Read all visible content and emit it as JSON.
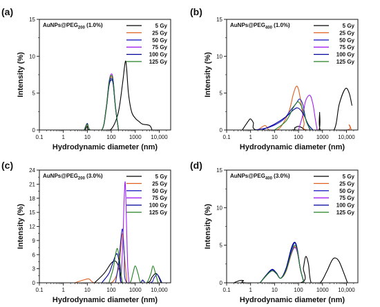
{
  "chart_data": [
    {
      "panel": "(a)",
      "type": "line",
      "title_main": "AuNPs@PEG",
      "title_sub": "200",
      "title_tail": " (1.0%)",
      "xlabel": "Hydrodynamic diameter (nm)",
      "ylabel": "Intensity (%)",
      "xscale": "log",
      "xlim": [
        0.1,
        30000
      ],
      "ylim": [
        0,
        15
      ],
      "xticks": [
        0.1,
        1,
        10,
        100,
        1000,
        10000
      ],
      "xtick_labels": [
        "0.1",
        "1",
        "10",
        "100",
        "1000",
        "10,000"
      ],
      "yticks": [
        0,
        5,
        10,
        15
      ],
      "ytick_labels": [
        "0",
        "5",
        "10",
        "15"
      ],
      "legend_position": "top-right",
      "series": [
        {
          "name": "5 Gy",
          "color": "#000000",
          "x": [
            8,
            10,
            12,
            60,
            110,
            200,
            300,
            380,
            430,
            520,
            700,
            1000,
            1500,
            2000,
            4000,
            5000
          ],
          "y": [
            0,
            0.5,
            0,
            0,
            0.3,
            2.5,
            6.5,
            9.2,
            8.6,
            5.0,
            2.5,
            1.6,
            1.1,
            0.8,
            0.6,
            0
          ]
        },
        {
          "name": "25 Gy",
          "color": "#e06020",
          "x": [
            7.5,
            10,
            13,
            40,
            60,
            80,
            100,
            120,
            150,
            200
          ],
          "y": [
            0,
            0.7,
            0,
            0,
            2.5,
            6.0,
            7.2,
            6.5,
            3.0,
            0
          ]
        },
        {
          "name": "50 Gy",
          "color": "#2020c0",
          "x": [
            7.5,
            10,
            13,
            40,
            60,
            80,
            100,
            120,
            150,
            200
          ],
          "y": [
            0,
            0.8,
            0,
            0,
            2.6,
            6.2,
            7.0,
            6.3,
            3.0,
            0
          ]
        },
        {
          "name": "75 Gy",
          "color": "#a020f0",
          "x": [
            7.5,
            10,
            13,
            40,
            60,
            80,
            100,
            120,
            150,
            200
          ],
          "y": [
            0,
            0.8,
            0,
            0,
            2.8,
            6.5,
            7.6,
            6.8,
            3.2,
            0
          ]
        },
        {
          "name": "100 Gy",
          "color": "#00009a",
          "x": [
            7.5,
            10,
            13,
            40,
            60,
            80,
            100,
            120,
            150,
            200
          ],
          "y": [
            0,
            0.9,
            0,
            0,
            2.7,
            6.0,
            6.8,
            6.2,
            3.0,
            0
          ]
        },
        {
          "name": "125 Gy",
          "color": "#208020",
          "x": [
            7.5,
            10,
            13,
            40,
            60,
            80,
            100,
            120,
            150,
            200
          ],
          "y": [
            0,
            0.8,
            0,
            0,
            2.7,
            6.4,
            7.4,
            6.6,
            3.1,
            0
          ]
        }
      ]
    },
    {
      "panel": "(b)",
      "type": "line",
      "title_main": "AuNPs@PEG",
      "title_sub": "400",
      "title_tail": " (1.0%)",
      "xlabel": "Hydrodynamic diameter (nm)",
      "ylabel": "Intensity (%)",
      "xscale": "log",
      "xlim": [
        0.1,
        30000
      ],
      "ylim": [
        0,
        15
      ],
      "xticks": [
        0.1,
        1,
        10,
        100,
        1000,
        10000
      ],
      "xtick_labels": [
        "0.1",
        "1",
        "10",
        "100",
        "1000",
        "10,000"
      ],
      "yticks": [
        0,
        5,
        10,
        15
      ],
      "ytick_labels": [
        "0",
        "5",
        "10",
        "15"
      ],
      "legend_position": "top-right",
      "series": [
        {
          "name": "5 Gy",
          "color": "#000000",
          "x": [
            0.45,
            0.8,
            1.0,
            1.3,
            1.8,
            50,
            70,
            100,
            140,
            200,
            700,
            760,
            820,
            3000,
            5000,
            9000,
            13000,
            17000
          ],
          "y": [
            0,
            1.2,
            1.5,
            1.0,
            0,
            0,
            0.3,
            0.5,
            0.3,
            0,
            0,
            2.4,
            0,
            0,
            3.5,
            5.6,
            5.0,
            3.3
          ]
        },
        {
          "name": "25 Gy",
          "color": "#e06020",
          "x": [
            2,
            4,
            6,
            12,
            20,
            40,
            60,
            80,
            100,
            130,
            170,
            230,
            10000,
            13000,
            16000
          ],
          "y": [
            0,
            0.6,
            0,
            0,
            0.6,
            2.5,
            4.8,
            5.9,
            5.5,
            3.5,
            1.0,
            0,
            0,
            0.7,
            0
          ]
        },
        {
          "name": "50 Gy",
          "color": "#2020c0",
          "x": [
            1.5,
            5,
            12,
            25,
            50,
            80,
            110,
            150,
            200,
            300
          ],
          "y": [
            0,
            0.3,
            0.8,
            1.5,
            2.8,
            3.6,
            4.2,
            3.5,
            1.5,
            0
          ]
        },
        {
          "name": "75 Gy",
          "color": "#a020f0",
          "x": [
            100,
            150,
            200,
            300,
            400,
            500,
            600
          ],
          "y": [
            0,
            2.0,
            4.0,
            4.7,
            3.5,
            1.5,
            0
          ]
        },
        {
          "name": "100 Gy",
          "color": "#00009a",
          "x": [
            3,
            10,
            30,
            60,
            90,
            130,
            180,
            260,
            400
          ],
          "y": [
            0,
            0.8,
            1.8,
            2.7,
            3.0,
            2.6,
            1.8,
            0.7,
            0
          ]
        },
        {
          "name": "125 Gy",
          "color": "#208020",
          "x": [
            10,
            30,
            60,
            90,
            120,
            160,
            220,
            320
          ],
          "y": [
            0,
            1.2,
            3.0,
            3.8,
            3.5,
            2.5,
            1.0,
            0
          ]
        }
      ]
    },
    {
      "panel": "(c)",
      "type": "line",
      "title_main": "AuNPs@PEG",
      "title_sub": "200",
      "title_tail": " (3.0%)",
      "xlabel": "Hydrodynamic diameter (nm)",
      "ylabel": "Intensity (%)",
      "xscale": "log",
      "xlim": [
        0.1,
        30000
      ],
      "ylim": [
        0,
        24
      ],
      "xticks": [
        0.1,
        1,
        10,
        100,
        1000,
        10000
      ],
      "xtick_labels": [
        "0.1",
        "1",
        "10",
        "100",
        "1000",
        "10,000"
      ],
      "yticks": [
        0,
        3,
        6,
        9,
        12,
        15,
        18,
        21,
        24
      ],
      "ytick_labels": [
        "0",
        "3",
        "6",
        "9",
        "12",
        "15",
        "18",
        "21",
        "24"
      ],
      "legend_position": "top-right",
      "series": [
        {
          "name": "5 Gy",
          "color": "#000000",
          "x": [
            20,
            50,
            100,
            150,
            200,
            250,
            300,
            3000,
            5000,
            7000,
            9000,
            12000
          ],
          "y": [
            0,
            2.0,
            4.2,
            4.6,
            3.5,
            1.5,
            0,
            0,
            1.2,
            2.0,
            1.5,
            0
          ]
        },
        {
          "name": "25 Gy",
          "color": "#e06020",
          "x": [
            3,
            8,
            12,
            20,
            100,
            200,
            250,
            300,
            350,
            450
          ],
          "y": [
            0,
            0.7,
            0.8,
            0,
            0,
            3.0,
            7.5,
            10.5,
            6.0,
            0
          ]
        },
        {
          "name": "50 Gy",
          "color": "#2020c0",
          "x": [
            150,
            200,
            260,
            300,
            350,
            450,
            4000,
            6000,
            8000,
            10000,
            13000
          ],
          "y": [
            0,
            4.0,
            10.0,
            11.2,
            6.0,
            0,
            0,
            1.0,
            1.8,
            1.2,
            0
          ]
        },
        {
          "name": "75 Gy",
          "color": "#a020f0",
          "x": [
            250,
            300,
            340,
            380,
            420,
            480,
            550
          ],
          "y": [
            0,
            8.0,
            17.0,
            21.5,
            15.0,
            4.0,
            0
          ]
        },
        {
          "name": "100 Gy",
          "color": "#00009a",
          "x": [
            40,
            80,
            120,
            150,
            180,
            220,
            280,
            1500,
            2000,
            2500
          ],
          "y": [
            0,
            2.0,
            4.5,
            5.8,
            6.1,
            4.0,
            0,
            0,
            0.6,
            0
          ]
        },
        {
          "name": "125 Gy",
          "color": "#208020",
          "x": [
            80,
            120,
            150,
            180,
            220,
            300,
            600,
            800,
            1000,
            1300,
            1700,
            3000,
            4500,
            5500,
            7000,
            9000
          ],
          "y": [
            0,
            3.0,
            6.0,
            7.3,
            5.0,
            0,
            0,
            2.0,
            3.6,
            2.0,
            0,
            0,
            2.0,
            3.6,
            2.0,
            0
          ]
        }
      ]
    },
    {
      "panel": "(d)",
      "type": "line",
      "title_main": "AuNPs@PEG",
      "title_sub": "400",
      "title_tail": " (3.0%)",
      "xlabel": "Hydrodynamic diameter (nm)",
      "ylabel": "Intensity (%)",
      "xscale": "log",
      "xlim": [
        0.1,
        30000
      ],
      "ylim": [
        0,
        15
      ],
      "xticks": [
        0.1,
        1,
        10,
        100,
        1000,
        10000
      ],
      "xtick_labels": [
        "0.1",
        "1",
        "10",
        "100",
        "1000",
        "10,000"
      ],
      "yticks": [
        0,
        5,
        10,
        15
      ],
      "ytick_labels": [
        "0",
        "5",
        "10",
        "15"
      ],
      "legend_position": "top-right",
      "series": [
        {
          "name": "5 Gy",
          "color": "#000000",
          "x": [
            0.2,
            0.35,
            0.5,
            0.7,
            120,
            160,
            200,
            260,
            340,
            800,
            1500,
            2500,
            3500,
            5000,
            8000,
            11000
          ],
          "y": [
            0,
            0.3,
            0.3,
            0,
            0,
            2.0,
            3.5,
            2.5,
            0,
            0,
            1.5,
            3.0,
            3.3,
            2.8,
            1.2,
            0
          ]
        },
        {
          "name": "25 Gy",
          "color": "#e06020",
          "x": [
            2.5,
            5,
            8,
            12,
            18,
            30,
            50,
            70,
            90,
            120,
            170
          ],
          "y": [
            0,
            1.2,
            1.6,
            1.2,
            0.6,
            1.5,
            3.8,
            4.8,
            4.0,
            1.8,
            0
          ]
        },
        {
          "name": "50 Gy",
          "color": "#2020c0",
          "x": [
            2.5,
            5,
            8,
            12,
            18,
            30,
            50,
            70,
            90,
            120,
            170
          ],
          "y": [
            0,
            1.2,
            1.7,
            1.3,
            0.6,
            1.8,
            4.3,
            5.3,
            4.3,
            1.8,
            0
          ]
        },
        {
          "name": "75 Gy",
          "color": "#a020f0",
          "x": [
            2.5,
            5,
            8,
            12,
            18,
            30,
            50,
            70,
            90,
            120,
            170
          ],
          "y": [
            0,
            1.1,
            1.6,
            1.2,
            0.6,
            1.6,
            3.9,
            4.7,
            4.0,
            1.8,
            0
          ]
        },
        {
          "name": "100 Gy",
          "color": "#00009a",
          "x": [
            2.5,
            5,
            8,
            12,
            18,
            30,
            50,
            70,
            90,
            120,
            170
          ],
          "y": [
            0,
            1.2,
            1.8,
            1.3,
            0.6,
            1.9,
            4.6,
            5.4,
            4.4,
            1.8,
            0
          ]
        },
        {
          "name": "125 Gy",
          "color": "#208020",
          "x": [
            2.5,
            5,
            8,
            12,
            18,
            30,
            50,
            70,
            90,
            120,
            170
          ],
          "y": [
            0,
            1.1,
            1.6,
            1.2,
            0.6,
            1.6,
            4.0,
            5.0,
            4.2,
            1.8,
            0
          ]
        }
      ]
    }
  ]
}
